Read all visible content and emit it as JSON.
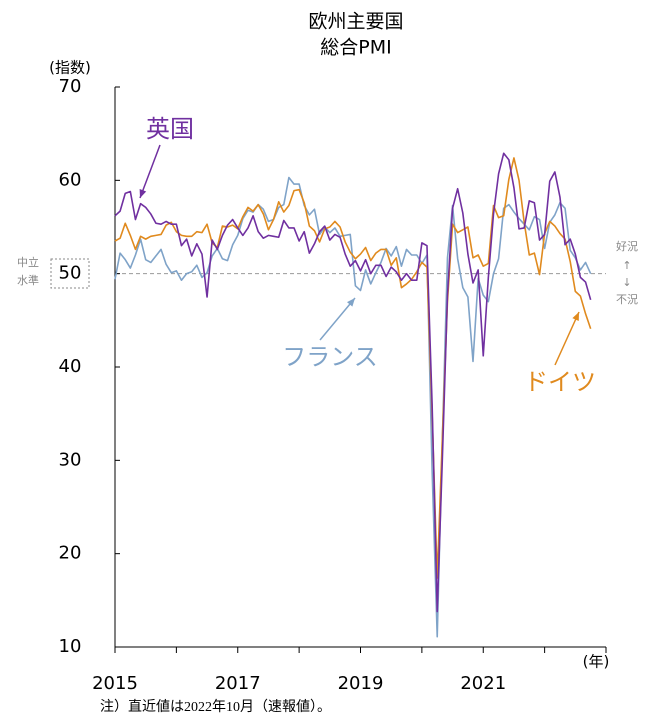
{
  "chart_data": {
    "type": "line",
    "title": "欧州主要国",
    "subtitle": "総合PMI",
    "y_label": "(指数)",
    "x_label": "(年)",
    "note": "注）直近値は2022年10月（速報値）。",
    "neutral_label": [
      "中立",
      "水準"
    ],
    "boom_label": [
      "好況",
      "↑",
      "↓",
      "不況"
    ],
    "reference_line": 50,
    "xlim": [
      2015,
      2023
    ],
    "xticks": [
      2015,
      2017,
      2019,
      2021
    ],
    "xminor_ticks": [
      2016,
      2018,
      2020,
      2022,
      2023
    ],
    "ylim": [
      10,
      70
    ],
    "yticks": [
      10,
      20,
      30,
      40,
      50,
      60,
      70
    ],
    "x": [
      2015.0,
      2015.083,
      2015.167,
      2015.25,
      2015.333,
      2015.417,
      2015.5,
      2015.583,
      2015.667,
      2015.75,
      2015.833,
      2015.917,
      2016.0,
      2016.083,
      2016.167,
      2016.25,
      2016.333,
      2016.417,
      2016.5,
      2016.583,
      2016.667,
      2016.75,
      2016.833,
      2016.917,
      2017.0,
      2017.083,
      2017.167,
      2017.25,
      2017.333,
      2017.417,
      2017.5,
      2017.583,
      2017.667,
      2017.75,
      2017.833,
      2017.917,
      2018.0,
      2018.083,
      2018.167,
      2018.25,
      2018.333,
      2018.417,
      2018.5,
      2018.583,
      2018.667,
      2018.75,
      2018.833,
      2018.917,
      2019.0,
      2019.083,
      2019.167,
      2019.25,
      2019.333,
      2019.417,
      2019.5,
      2019.583,
      2019.667,
      2019.75,
      2019.833,
      2019.917,
      2020.0,
      2020.083,
      2020.167,
      2020.25,
      2020.333,
      2020.417,
      2020.5,
      2020.583,
      2020.667,
      2020.75,
      2020.833,
      2020.917,
      2021.0,
      2021.083,
      2021.167,
      2021.25,
      2021.333,
      2021.417,
      2021.5,
      2021.583,
      2021.667,
      2021.75,
      2021.833,
      2021.917,
      2022.0,
      2022.083,
      2022.167,
      2022.25,
      2022.333,
      2022.417,
      2022.5,
      2022.583,
      2022.667,
      2022.75
    ],
    "series": [
      {
        "name": "英国",
        "color": "#7030a0",
        "values": [
          56.2,
          56.7,
          58.6,
          58.8,
          55.8,
          57.5,
          57.1,
          56.4,
          55.4,
          55.3,
          55.6,
          55.3,
          55.3,
          53.0,
          53.7,
          51.9,
          53.2,
          52.1,
          47.5,
          53.6,
          52.6,
          54.1,
          55.2,
          55.8,
          54.9,
          54.1,
          54.9,
          56.2,
          54.5,
          53.8,
          54.1,
          54.0,
          53.9,
          55.7,
          54.9,
          54.9,
          53.5,
          54.5,
          52.2,
          53.2,
          54.5,
          55.1,
          53.6,
          54.2,
          53.9,
          52.1,
          50.8,
          51.4,
          50.3,
          51.5,
          50.0,
          50.9,
          50.9,
          49.7,
          50.7,
          50.2,
          49.3,
          50.0,
          49.3,
          49.3,
          53.3,
          53.0,
          36.0,
          13.8,
          30.0,
          47.7,
          57.0,
          59.1,
          56.5,
          52.1,
          49.0,
          50.4,
          41.2,
          49.6,
          56.4,
          60.7,
          62.9,
          62.2,
          59.2,
          54.8,
          54.9,
          57.8,
          57.6,
          53.6,
          54.2,
          59.9,
          60.9,
          58.2,
          53.1,
          53.7,
          52.1,
          49.6,
          49.1,
          47.2
        ]
      },
      {
        "name": "ドイツ",
        "color": "#e08a1e",
        "values": [
          53.5,
          53.8,
          55.4,
          54.1,
          52.6,
          54.0,
          53.7,
          54.0,
          54.1,
          54.2,
          55.2,
          55.5,
          54.5,
          54.1,
          54.0,
          54.0,
          54.5,
          54.4,
          55.3,
          53.3,
          52.8,
          55.1,
          55.0,
          55.2,
          54.8,
          56.1,
          57.1,
          56.7,
          57.4,
          56.4,
          54.7,
          55.8,
          57.7,
          56.6,
          57.3,
          58.9,
          59.0,
          57.6,
          55.1,
          54.6,
          53.4,
          54.8,
          55.0,
          55.6,
          55.0,
          53.4,
          52.3,
          51.6,
          52.1,
          52.8,
          51.4,
          52.2,
          52.6,
          52.6,
          50.9,
          51.7,
          48.5,
          48.9,
          49.4,
          50.2,
          51.2,
          50.7,
          35.0,
          17.4,
          32.3,
          47.0,
          55.3,
          54.4,
          54.7,
          55.0,
          51.7,
          52.0,
          50.8,
          51.1,
          57.3,
          56.0,
          56.2,
          60.1,
          62.4,
          60.0,
          55.5,
          52.0,
          52.2,
          49.9,
          54.3,
          55.6,
          55.1,
          54.3,
          53.7,
          51.3,
          48.1,
          47.6,
          45.7,
          44.1
        ]
      },
      {
        "name": "フランス",
        "color": "#7fa3c8",
        "values": [
          49.4,
          52.2,
          51.5,
          50.6,
          52.0,
          53.7,
          51.5,
          51.2,
          51.9,
          52.6,
          51.0,
          50.1,
          50.3,
          49.3,
          50.0,
          50.2,
          50.9,
          49.6,
          50.1,
          51.9,
          52.7,
          51.6,
          51.4,
          53.1,
          54.1,
          55.9,
          56.8,
          56.6,
          57.4,
          56.9,
          55.6,
          55.8,
          57.1,
          57.4,
          60.3,
          59.6,
          59.6,
          57.3,
          56.3,
          56.9,
          54.2,
          55.0,
          54.4,
          54.9,
          54.0,
          54.1,
          54.2,
          48.7,
          48.2,
          50.4,
          48.9,
          50.1,
          51.2,
          52.7,
          51.9,
          52.9,
          50.8,
          52.6,
          52.0,
          52.0,
          51.1,
          52.0,
          28.9,
          11.1,
          32.1,
          51.7,
          57.3,
          51.6,
          48.5,
          47.5,
          40.6,
          49.5,
          47.7,
          47.0,
          50.0,
          51.6,
          57.0,
          57.4,
          56.6,
          55.9,
          55.3,
          54.7,
          56.1,
          55.8,
          52.7,
          55.5,
          56.3,
          57.6,
          57.0,
          52.5,
          51.7,
          50.4,
          51.2,
          50.0
        ]
      }
    ]
  }
}
